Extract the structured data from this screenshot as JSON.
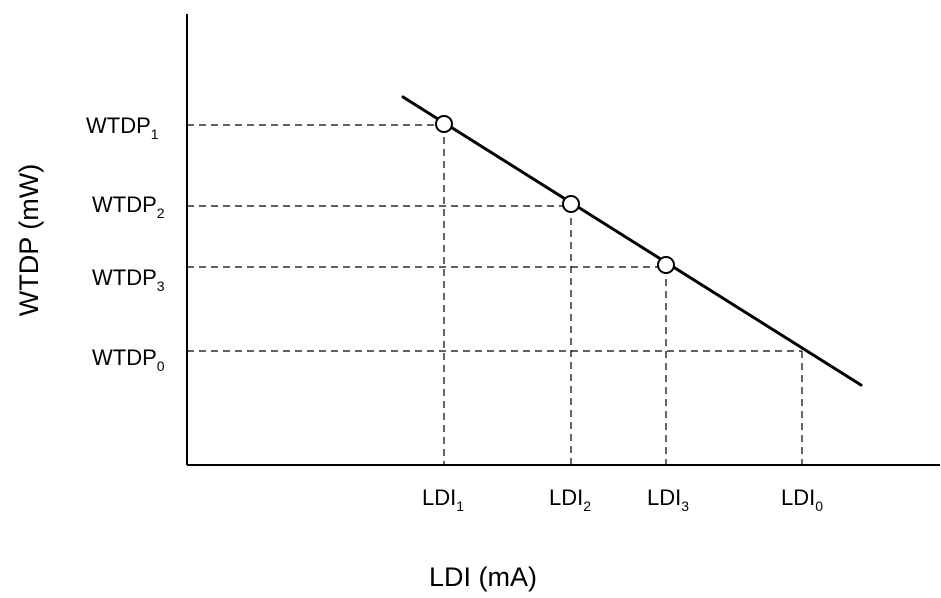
{
  "chart_data": {
    "type": "line",
    "title": "",
    "xlabel": "LDI (mA)",
    "ylabel": "WTDP (mW)",
    "x_ticks": [
      {
        "base": "LDI",
        "sub": "1"
      },
      {
        "base": "LDI",
        "sub": "2"
      },
      {
        "base": "LDI",
        "sub": "3"
      },
      {
        "base": "LDI",
        "sub": "0"
      }
    ],
    "y_ticks": [
      {
        "base": "WTDP",
        "sub": "1"
      },
      {
        "base": "WTDP",
        "sub": "2"
      },
      {
        "base": "WTDP",
        "sub": "3"
      },
      {
        "base": "WTDP",
        "sub": "0"
      }
    ],
    "points": [
      {
        "x": "LDI1",
        "y": "WTDP1",
        "marker": "open-circle"
      },
      {
        "x": "LDI2",
        "y": "WTDP2",
        "marker": "open-circle"
      },
      {
        "x": "LDI3",
        "y": "WTDP3",
        "marker": "open-circle"
      },
      {
        "x": "LDI0",
        "y": "WTDP0",
        "marker": "none"
      }
    ],
    "trend": "linear decreasing",
    "guide_lines": "dashed",
    "grid": false,
    "legend": "none"
  }
}
